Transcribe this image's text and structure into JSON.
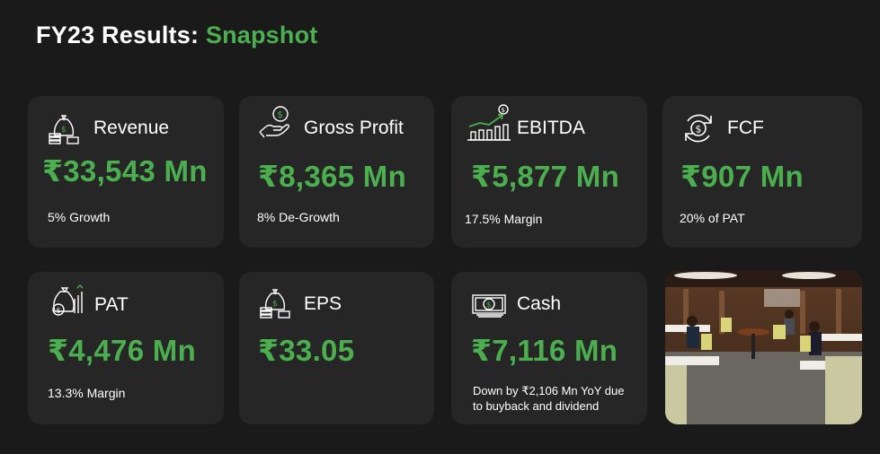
{
  "header": {
    "title_prefix": "FY23 Results:",
    "title_accent": "Snapshot"
  },
  "colors": {
    "accent": "#4caf4f",
    "background": "#1a1a1a",
    "card": "#262626"
  },
  "cards": [
    {
      "label": "Revenue",
      "value": "₹33,543 Mn",
      "sub": "5% Growth",
      "icon": "money-bag-icon"
    },
    {
      "label": "Gross Profit",
      "value": "₹8,365 Mn",
      "sub": "8% De-Growth",
      "icon": "hand-coin-icon"
    },
    {
      "label": "EBITDA",
      "value": "₹5,877 Mn",
      "sub": "17.5% Margin",
      "icon": "growth-chart-icon"
    },
    {
      "label": "FCF",
      "value": "₹907 Mn",
      "sub": "20% of PAT",
      "icon": "cash-cycle-icon"
    },
    {
      "label": "PAT",
      "value": "₹4,476 Mn",
      "sub": "13.3% Margin",
      "icon": "profit-bag-icon"
    },
    {
      "label": "EPS",
      "value": "₹33.05",
      "sub": "",
      "icon": "money-bag-icon"
    },
    {
      "label": "Cash",
      "value": "₹7,116 Mn",
      "sub_line1": "Down by ₹2,106 Mn YoY due",
      "sub_line2": "to buyback and dividend",
      "icon": "banknote-icon"
    }
  ],
  "photo": {
    "icon": "office-photo-icon"
  }
}
